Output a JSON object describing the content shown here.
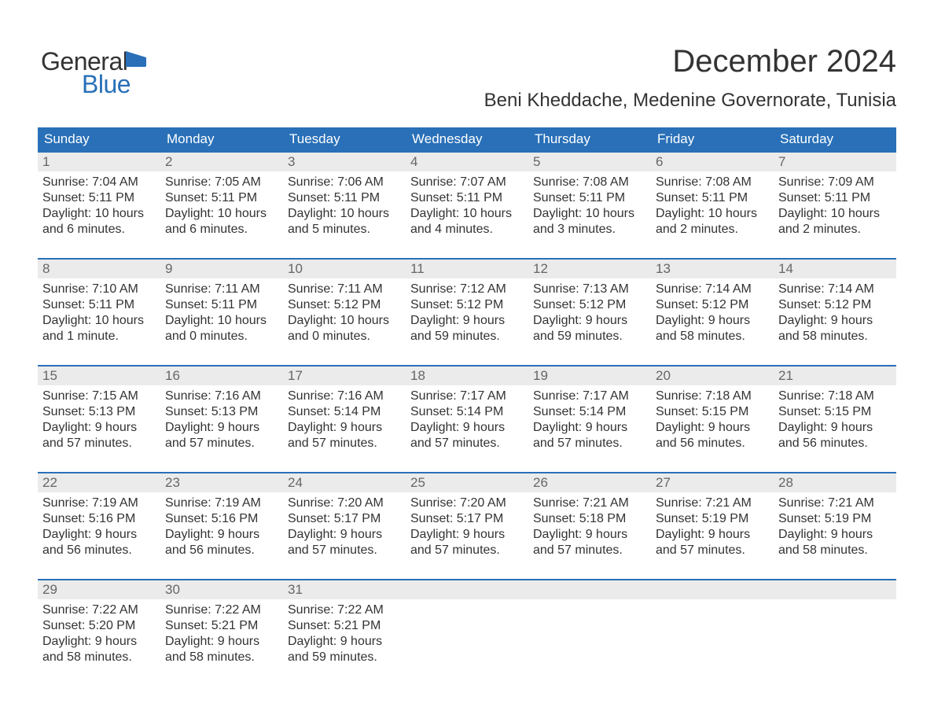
{
  "logo": {
    "word1": "General",
    "word2": "Blue"
  },
  "title": "December 2024",
  "subtitle": "Beni Kheddache, Medenine Governorate, Tunisia",
  "colors": {
    "brand": "#2970b8",
    "row_bg": "#ebebeb",
    "text": "#333333",
    "muted": "#666666",
    "bg": "#ffffff"
  },
  "day_headers": [
    "Sunday",
    "Monday",
    "Tuesday",
    "Wednesday",
    "Thursday",
    "Friday",
    "Saturday"
  ],
  "labels": {
    "sunrise": "Sunrise:",
    "sunset": "Sunset:",
    "daylight": "Daylight:"
  },
  "weeks": [
    [
      {
        "day": "1",
        "sunrise": "7:04 AM",
        "sunset": "5:11 PM",
        "daylight": "10 hours and 6 minutes."
      },
      {
        "day": "2",
        "sunrise": "7:05 AM",
        "sunset": "5:11 PM",
        "daylight": "10 hours and 6 minutes."
      },
      {
        "day": "3",
        "sunrise": "7:06 AM",
        "sunset": "5:11 PM",
        "daylight": "10 hours and 5 minutes."
      },
      {
        "day": "4",
        "sunrise": "7:07 AM",
        "sunset": "5:11 PM",
        "daylight": "10 hours and 4 minutes."
      },
      {
        "day": "5",
        "sunrise": "7:08 AM",
        "sunset": "5:11 PM",
        "daylight": "10 hours and 3 minutes."
      },
      {
        "day": "6",
        "sunrise": "7:08 AM",
        "sunset": "5:11 PM",
        "daylight": "10 hours and 2 minutes."
      },
      {
        "day": "7",
        "sunrise": "7:09 AM",
        "sunset": "5:11 PM",
        "daylight": "10 hours and 2 minutes."
      }
    ],
    [
      {
        "day": "8",
        "sunrise": "7:10 AM",
        "sunset": "5:11 PM",
        "daylight": "10 hours and 1 minute."
      },
      {
        "day": "9",
        "sunrise": "7:11 AM",
        "sunset": "5:11 PM",
        "daylight": "10 hours and 0 minutes."
      },
      {
        "day": "10",
        "sunrise": "7:11 AM",
        "sunset": "5:12 PM",
        "daylight": "10 hours and 0 minutes."
      },
      {
        "day": "11",
        "sunrise": "7:12 AM",
        "sunset": "5:12 PM",
        "daylight": "9 hours and 59 minutes."
      },
      {
        "day": "12",
        "sunrise": "7:13 AM",
        "sunset": "5:12 PM",
        "daylight": "9 hours and 59 minutes."
      },
      {
        "day": "13",
        "sunrise": "7:14 AM",
        "sunset": "5:12 PM",
        "daylight": "9 hours and 58 minutes."
      },
      {
        "day": "14",
        "sunrise": "7:14 AM",
        "sunset": "5:12 PM",
        "daylight": "9 hours and 58 minutes."
      }
    ],
    [
      {
        "day": "15",
        "sunrise": "7:15 AM",
        "sunset": "5:13 PM",
        "daylight": "9 hours and 57 minutes."
      },
      {
        "day": "16",
        "sunrise": "7:16 AM",
        "sunset": "5:13 PM",
        "daylight": "9 hours and 57 minutes."
      },
      {
        "day": "17",
        "sunrise": "7:16 AM",
        "sunset": "5:14 PM",
        "daylight": "9 hours and 57 minutes."
      },
      {
        "day": "18",
        "sunrise": "7:17 AM",
        "sunset": "5:14 PM",
        "daylight": "9 hours and 57 minutes."
      },
      {
        "day": "19",
        "sunrise": "7:17 AM",
        "sunset": "5:14 PM",
        "daylight": "9 hours and 57 minutes."
      },
      {
        "day": "20",
        "sunrise": "7:18 AM",
        "sunset": "5:15 PM",
        "daylight": "9 hours and 56 minutes."
      },
      {
        "day": "21",
        "sunrise": "7:18 AM",
        "sunset": "5:15 PM",
        "daylight": "9 hours and 56 minutes."
      }
    ],
    [
      {
        "day": "22",
        "sunrise": "7:19 AM",
        "sunset": "5:16 PM",
        "daylight": "9 hours and 56 minutes."
      },
      {
        "day": "23",
        "sunrise": "7:19 AM",
        "sunset": "5:16 PM",
        "daylight": "9 hours and 56 minutes."
      },
      {
        "day": "24",
        "sunrise": "7:20 AM",
        "sunset": "5:17 PM",
        "daylight": "9 hours and 57 minutes."
      },
      {
        "day": "25",
        "sunrise": "7:20 AM",
        "sunset": "5:17 PM",
        "daylight": "9 hours and 57 minutes."
      },
      {
        "day": "26",
        "sunrise": "7:21 AM",
        "sunset": "5:18 PM",
        "daylight": "9 hours and 57 minutes."
      },
      {
        "day": "27",
        "sunrise": "7:21 AM",
        "sunset": "5:19 PM",
        "daylight": "9 hours and 57 minutes."
      },
      {
        "day": "28",
        "sunrise": "7:21 AM",
        "sunset": "5:19 PM",
        "daylight": "9 hours and 58 minutes."
      }
    ],
    [
      {
        "day": "29",
        "sunrise": "7:22 AM",
        "sunset": "5:20 PM",
        "daylight": "9 hours and 58 minutes."
      },
      {
        "day": "30",
        "sunrise": "7:22 AM",
        "sunset": "5:21 PM",
        "daylight": "9 hours and 58 minutes."
      },
      {
        "day": "31",
        "sunrise": "7:22 AM",
        "sunset": "5:21 PM",
        "daylight": "9 hours and 59 minutes."
      },
      {
        "empty": true
      },
      {
        "empty": true
      },
      {
        "empty": true
      },
      {
        "empty": true
      }
    ]
  ]
}
